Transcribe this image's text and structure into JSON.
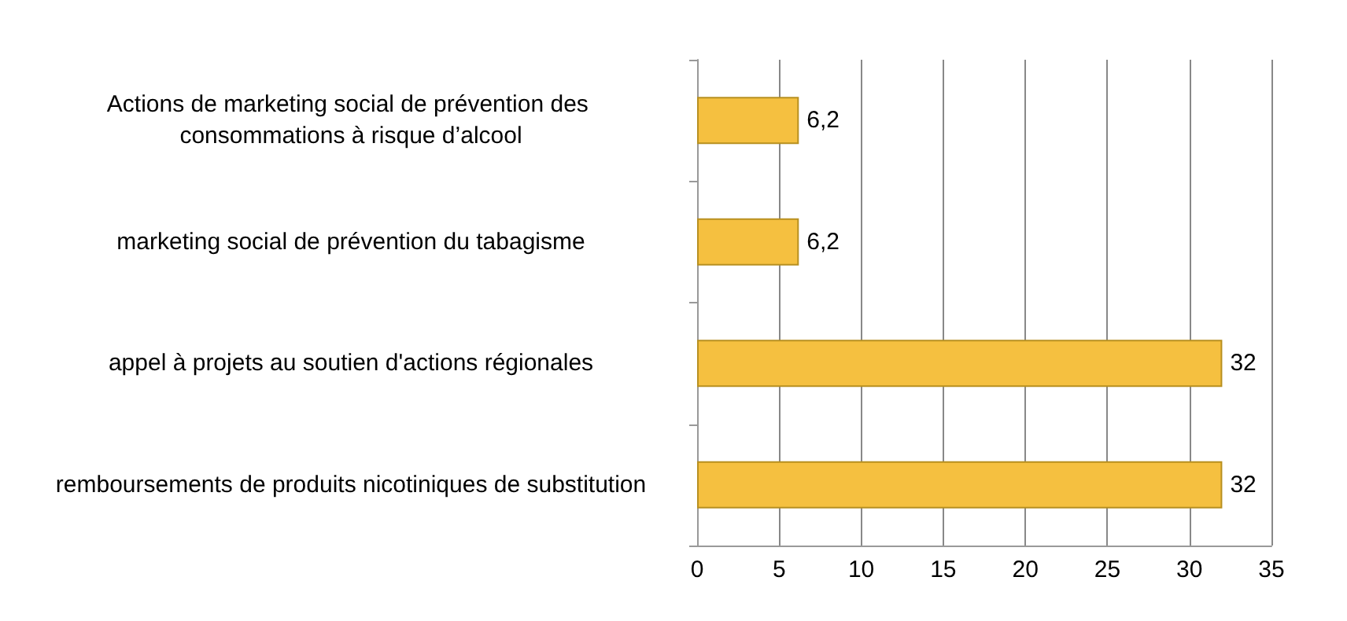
{
  "chart_data": {
    "type": "bar",
    "orientation": "horizontal",
    "categories": [
      "Actions de marketing social de prévention des consommations à risque d’alcool",
      "marketing social de prévention du tabagisme",
      "appel à projets au soutien d'actions régionales",
      "remboursements de produits nicotiniques de substitution"
    ],
    "values": [
      6.2,
      6.2,
      32,
      32
    ],
    "value_labels": [
      "6,2",
      "6,2",
      "32",
      "32"
    ],
    "color": "#f5c040",
    "xlim": [
      0,
      35
    ],
    "xticks": [
      0,
      5,
      10,
      15,
      20,
      25,
      30,
      35
    ],
    "grid": "x"
  }
}
